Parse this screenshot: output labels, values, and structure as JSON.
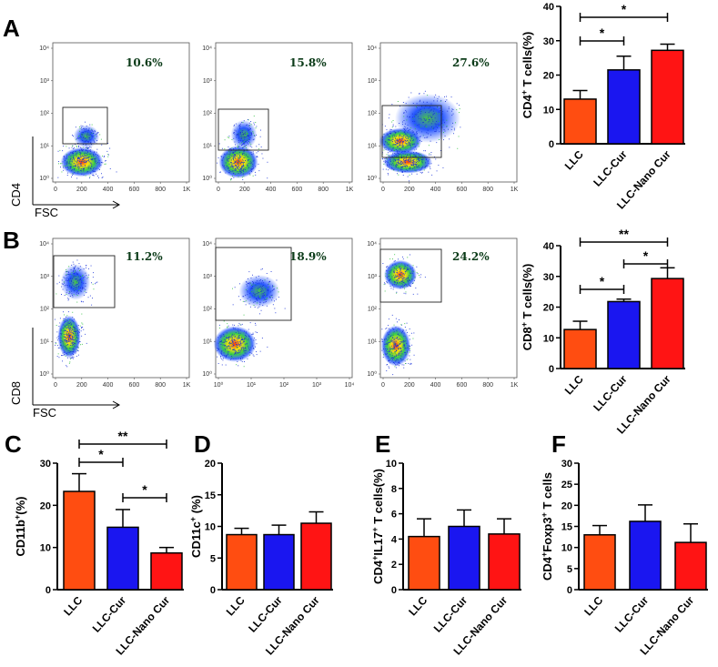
{
  "panel_letters": [
    "A",
    "B",
    "C",
    "D",
    "E",
    "F"
  ],
  "colors": {
    "llc": "#ff4d11",
    "llc_cur": "#1a16f0",
    "llc_nano": "#ff1414"
  },
  "flow_plots": {
    "x_ticks_linear": [
      "0",
      "200",
      "400",
      "600",
      "800",
      "1K"
    ],
    "x_ticks_log": [
      "10⁰",
      "10¹",
      "10²",
      "10³",
      "10⁴"
    ],
    "y_ticks": [
      "10⁰",
      "10¹",
      "10²",
      "10³",
      "10⁴"
    ],
    "row_a": {
      "y_axis_label": "CD4",
      "x_axis_label": "FSC",
      "gate_percents": [
        "10.6%",
        "15.8%",
        "27.6%"
      ]
    },
    "row_b": {
      "y_axis_label": "CD8",
      "x_axis_label": "FSC",
      "gate_percents": [
        "11.2%",
        "18.9%",
        "24.2%"
      ]
    }
  },
  "chart_data": [
    {
      "id": "A",
      "type": "bar",
      "categories": [
        "LLC",
        "LLC-Cur",
        "LLC-Nano Cur"
      ],
      "values": [
        13,
        21.5,
        27.2
      ],
      "errors": [
        2.5,
        4.0,
        1.8
      ],
      "ylabel_main": "CD4",
      "ylabel_sup": "+",
      "ylabel_rest": " T cells(%)",
      "ylim": [
        0,
        40
      ],
      "yticks": [
        0,
        10,
        20,
        30,
        40
      ],
      "significance": [
        {
          "from": 0,
          "to": 1,
          "label": "*"
        },
        {
          "from": 0,
          "to": 2,
          "label": "*"
        }
      ]
    },
    {
      "id": "B",
      "type": "bar",
      "categories": [
        "LLC",
        "LLC-Cur",
        "LLC-Nano Cur"
      ],
      "values": [
        12.7,
        21.8,
        29.3
      ],
      "errors": [
        2.7,
        0.8,
        3.5
      ],
      "ylabel_main": "CD8",
      "ylabel_sup": "+",
      "ylabel_rest": " T cells(%)",
      "ylim": [
        0,
        40
      ],
      "yticks": [
        0,
        10,
        20,
        30,
        40
      ],
      "significance": [
        {
          "from": 0,
          "to": 1,
          "label": "*"
        },
        {
          "from": 1,
          "to": 2,
          "label": "*"
        },
        {
          "from": 0,
          "to": 2,
          "label": "**"
        }
      ]
    },
    {
      "id": "C",
      "type": "bar",
      "categories": [
        "LLC",
        "LLC-Cur",
        "LLC-Nano Cur"
      ],
      "values": [
        23.3,
        14.8,
        8.7
      ],
      "errors": [
        4.2,
        4.2,
        1.3
      ],
      "ylabel_main": "CD11b",
      "ylabel_sup": "+",
      "ylabel_rest": "(%)",
      "ylim": [
        0,
        30
      ],
      "yticks": [
        0,
        10,
        20,
        30
      ],
      "significance": [
        {
          "from": 0,
          "to": 1,
          "label": "*"
        },
        {
          "from": 1,
          "to": 2,
          "label": "*"
        },
        {
          "from": 0,
          "to": 2,
          "label": "**"
        }
      ]
    },
    {
      "id": "D",
      "type": "bar",
      "categories": [
        "LLC",
        "LLC-Cur",
        "LLC-Nano Cur"
      ],
      "values": [
        8.7,
        8.7,
        10.5
      ],
      "errors": [
        1.0,
        1.5,
        1.8
      ],
      "ylabel_main": "CD11c",
      "ylabel_sup": "+",
      "ylabel_rest": " (%)",
      "ylim": [
        0,
        20
      ],
      "yticks": [
        0,
        5,
        10,
        15,
        20
      ],
      "significance": []
    },
    {
      "id": "E",
      "type": "bar",
      "categories": [
        "LLC",
        "LLC-Cur",
        "LLC-Nano Cur"
      ],
      "values": [
        4.2,
        5.0,
        4.4
      ],
      "errors": [
        1.4,
        1.3,
        1.2
      ],
      "ylabel_main": "CD4",
      "ylabel_sup": "+",
      "ylabel_rest": "IL17",
      "ylabel_sup2": "+",
      "ylabel_rest2": " T cells(%)",
      "ylim": [
        0,
        10
      ],
      "yticks": [
        0,
        2,
        4,
        6,
        8,
        10
      ],
      "significance": []
    },
    {
      "id": "F",
      "type": "bar",
      "categories": [
        "LLC",
        "LLC-Cur",
        "LLC-Nano Cur"
      ],
      "values": [
        13.0,
        16.2,
        11.2
      ],
      "errors": [
        2.2,
        3.9,
        4.4
      ],
      "ylabel_main": "CD4",
      "ylabel_sup": "+",
      "ylabel_rest": "Foxp3",
      "ylabel_sup2": "+",
      "ylabel_rest2": " T cells",
      "ylim": [
        0,
        30
      ],
      "yticks": [
        0,
        5,
        10,
        15,
        20,
        25,
        30
      ],
      "significance": []
    }
  ]
}
